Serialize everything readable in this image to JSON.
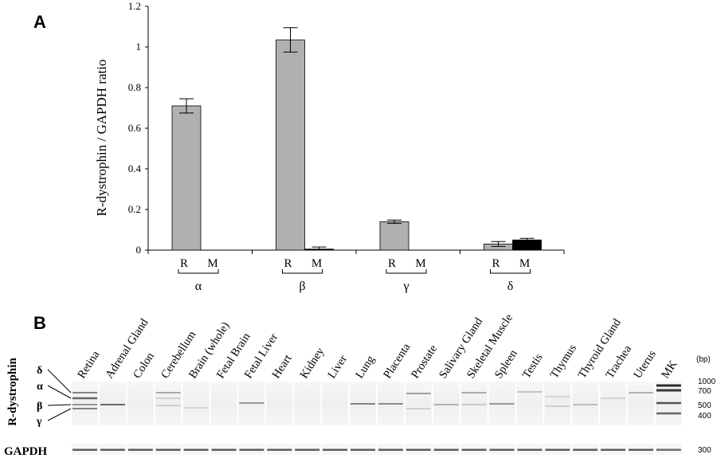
{
  "panel_a_label": "A",
  "panel_b_label": "B",
  "chart_data": {
    "type": "bar",
    "title": "",
    "ylabel": "R-dystrophin / GAPDH  ratio",
    "xlabel": "",
    "ylim": [
      0,
      1.2
    ],
    "yticks": [
      "0",
      "0.2",
      "0.4",
      "0.6",
      "0.8",
      "1",
      "1.2"
    ],
    "groups": [
      "α",
      "β",
      "γ",
      "δ"
    ],
    "bar_labels": [
      "R",
      "M"
    ],
    "series": [
      {
        "name": "R",
        "color": "#b0b0b0",
        "values": [
          0.71,
          1.035,
          0.14,
          0.03
        ],
        "errors": [
          0.035,
          0.06,
          0.008,
          0.012
        ]
      },
      {
        "name": "M",
        "color": "#000000",
        "values": [
          0.0,
          0.005,
          0.0,
          0.05
        ],
        "errors": [
          0.0,
          0.01,
          0.0,
          0.008
        ]
      }
    ],
    "grid": false,
    "legend": "none"
  },
  "gel": {
    "row_labels": {
      "r_dystrophin": "R-dystrophin",
      "gapdh": "GAPDH"
    },
    "isoforms": [
      "δ",
      "α",
      "β",
      "γ"
    ],
    "lanes": [
      "Retina",
      "Adrenal Gland",
      "Colon",
      "Cerebellum",
      "Brain (whole)",
      "Fetal Brain",
      "Fetal Liver",
      "Heart",
      "Kidney",
      "Liver",
      "Lung",
      "Placenta",
      "Prostate",
      "Salivary Gland",
      "Skeletal Muscle",
      "Spleen",
      "Testis",
      "Thymus",
      "Thyroid Gland",
      "Trachea",
      "Uterus",
      "MK"
    ],
    "unit": "(bp)",
    "markers": [
      "1000",
      "700",
      "500",
      "400"
    ],
    "gapdh_marker": "300"
  }
}
